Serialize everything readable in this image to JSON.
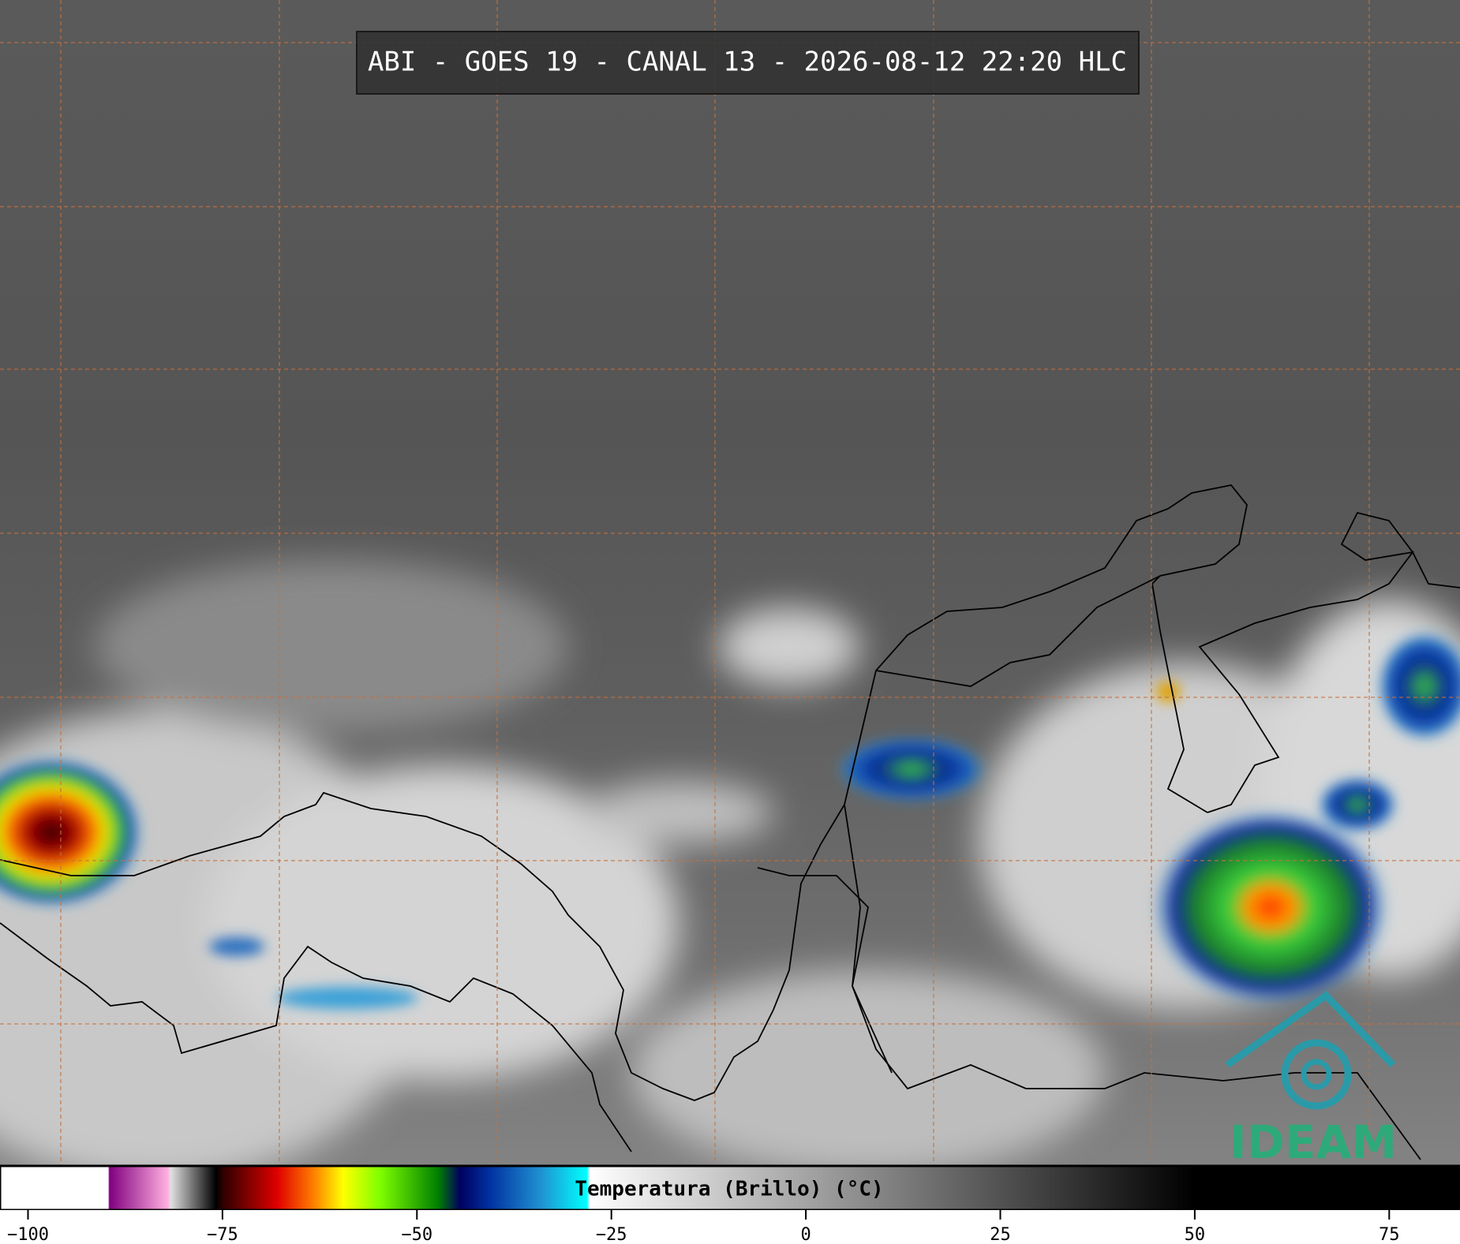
{
  "header": {
    "title": "ABI - GOES 19 - CANAL 13 - 2026-08-12 22:20 HLC"
  },
  "colorbar": {
    "label": "Temperatura (Brillo) (°C)",
    "lim": [
      -103.6,
      84.1
    ],
    "ticks": [
      {
        "value": -100,
        "label": "−100"
      },
      {
        "value": -75,
        "label": "−75"
      },
      {
        "value": -50,
        "label": "−50"
      },
      {
        "value": -25,
        "label": "−25"
      },
      0,
      25,
      50,
      75
    ]
  },
  "logo": {
    "text": "IDEAM"
  }
}
